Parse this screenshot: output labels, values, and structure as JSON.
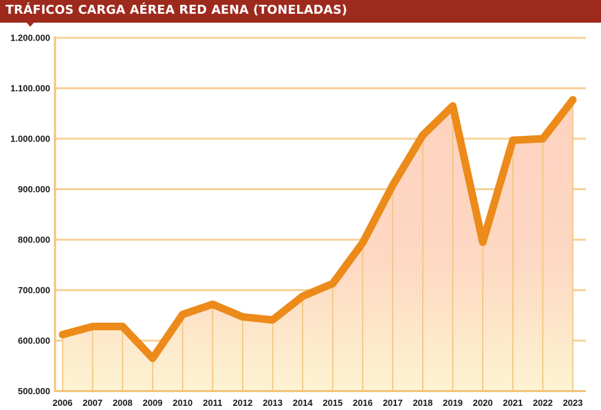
{
  "chart_data": {
    "type": "area",
    "title": "TRÁFICOS CARGA AÉREA RED AENA (TONELADAS)",
    "xlabel": "",
    "ylabel": "",
    "categories": [
      "2006",
      "2007",
      "2008",
      "2009",
      "2010",
      "2011",
      "2012",
      "2013",
      "2014",
      "2015",
      "2016",
      "2017",
      "2018",
      "2019",
      "2020",
      "2021",
      "2022",
      "2023"
    ],
    "values": [
      612000,
      628000,
      628000,
      565000,
      652000,
      672000,
      647000,
      641000,
      688000,
      713000,
      794000,
      908000,
      1007000,
      1065000,
      795000,
      997000,
      1000000,
      1077000
    ],
    "ylim": [
      500000,
      1200000
    ],
    "yticks": [
      "500.000",
      "600.000",
      "700.000",
      "800.000",
      "900.000",
      "1.000.000",
      "1.100.000",
      "1.200.000"
    ],
    "grid": true,
    "legend": "none",
    "colors": {
      "title_bg": "#9e2a1e",
      "line": "#ec8a1a",
      "grid": "#f7d39a",
      "axis": "#f2c47a",
      "fill_top": "#fdd2c0",
      "fill_bottom": "#fdf3d2"
    }
  }
}
